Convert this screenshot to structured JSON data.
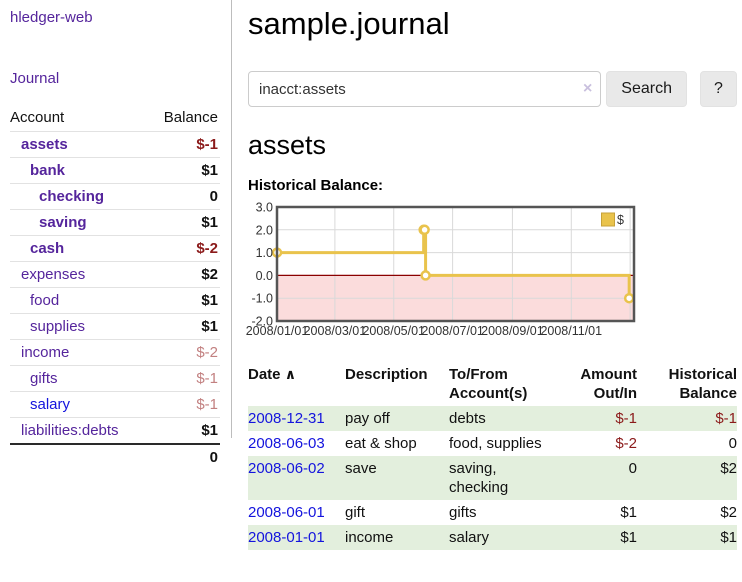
{
  "colors": {
    "accent_purple": "#55259c",
    "link_blue": "#1414dd",
    "negative_strong": "#8b1a1a",
    "negative_soft": "#c28080",
    "row_green": "#e3efdd",
    "button_bg": "#e9e9e9"
  },
  "sidebar": {
    "app_title": "hledger-web",
    "journal_label": "Journal",
    "accounts_table": {
      "account_header": "Account",
      "balance_header": "Balance",
      "rows": [
        {
          "name": "assets",
          "depth": 1,
          "bold": true,
          "balance": "$-1"
        },
        {
          "name": "bank",
          "depth": 2,
          "bold": true,
          "balance": "$1"
        },
        {
          "name": "checking",
          "depth": 3,
          "bold": true,
          "balance": "0"
        },
        {
          "name": "saving",
          "depth": 3,
          "bold": true,
          "balance": "$1"
        },
        {
          "name": "cash",
          "depth": 2,
          "bold": true,
          "balance": "$-2"
        },
        {
          "name": "expenses",
          "depth": 1,
          "bold": false,
          "balance": "$2"
        },
        {
          "name": "food",
          "depth": 2,
          "bold": false,
          "balance": "$1"
        },
        {
          "name": "supplies",
          "depth": 2,
          "bold": false,
          "balance": "$1"
        },
        {
          "name": "income",
          "depth": 1,
          "bold": false,
          "balance": "$-2"
        },
        {
          "name": "gifts",
          "depth": 2,
          "bold": false,
          "balance": "$-1"
        },
        {
          "name": "salary",
          "depth": 2,
          "bold": false,
          "balance": "$-1",
          "blue": true
        },
        {
          "name": "liabilities:debts",
          "depth": 1,
          "bold": false,
          "balance": "$1"
        }
      ],
      "total": "0"
    }
  },
  "header": {
    "title": "sample.journal"
  },
  "search": {
    "value": "inacct:assets",
    "clear_icon": "×",
    "button_label": "Search",
    "help_label": "?"
  },
  "account_page": {
    "heading": "assets",
    "chart_label": "Historical Balance:"
  },
  "chart_data": {
    "type": "line",
    "style": "step-after",
    "title": "Historical Balance",
    "series": [
      {
        "name": "$",
        "points": [
          {
            "date": "2008-01-01",
            "day": 0,
            "value": 1
          },
          {
            "date": "2008-06-01",
            "day": 152,
            "value": 2
          },
          {
            "date": "2008-06-02",
            "day": 153,
            "value": 2
          },
          {
            "date": "2008-06-03",
            "day": 154,
            "value": 0
          },
          {
            "date": "2008-12-31",
            "day": 365,
            "value": -1
          }
        ]
      }
    ],
    "x_domain_days": [
      0,
      370
    ],
    "ylim": [
      -2,
      3
    ],
    "y_ticks": [
      3.0,
      2.0,
      1.0,
      0.0,
      -1.0,
      -2.0
    ],
    "x_ticks": [
      {
        "day": 0,
        "label": "2008/01/01"
      },
      {
        "day": 60,
        "label": "2008/03/01"
      },
      {
        "day": 121,
        "label": "2008/05/01"
      },
      {
        "day": 182,
        "label": "2008/07/01"
      },
      {
        "day": 244,
        "label": "2008/09/01"
      },
      {
        "day": 305,
        "label": "2008/11/01"
      }
    ],
    "extra_gridline_day": 366,
    "legend": {
      "label": "$",
      "position": "top-right"
    },
    "grid": true,
    "colors": {
      "line": "#e9c34c",
      "marker_fill": "#ffffff",
      "legend_border": "#c7a23a",
      "negative_area": "#fbdcdc",
      "zero_line": "#8b0000",
      "grid": "#d9d9d9",
      "border": "#555555"
    }
  },
  "register_table": {
    "headers": {
      "date": "Date",
      "sort_icon": "∧",
      "description": "Description",
      "accounts": "To/From Account(s)",
      "amount": "Amount Out/In",
      "balance": "Historical Balance"
    },
    "rows": [
      {
        "date": "2008-12-31",
        "description": "pay off",
        "accounts": "debts",
        "amount": "$-1",
        "balance": "$-1"
      },
      {
        "date": "2008-06-03",
        "description": "eat & shop",
        "accounts": "food, supplies",
        "amount": "$-2",
        "balance": "0"
      },
      {
        "date": "2008-06-02",
        "description": "save",
        "accounts": "saving, checking",
        "amount": "0",
        "balance": "$2"
      },
      {
        "date": "2008-06-01",
        "description": "gift",
        "accounts": "gifts",
        "amount": "$1",
        "balance": "$2"
      },
      {
        "date": "2008-01-01",
        "description": "income",
        "accounts": "salary",
        "amount": "$1",
        "balance": "$1"
      }
    ]
  }
}
